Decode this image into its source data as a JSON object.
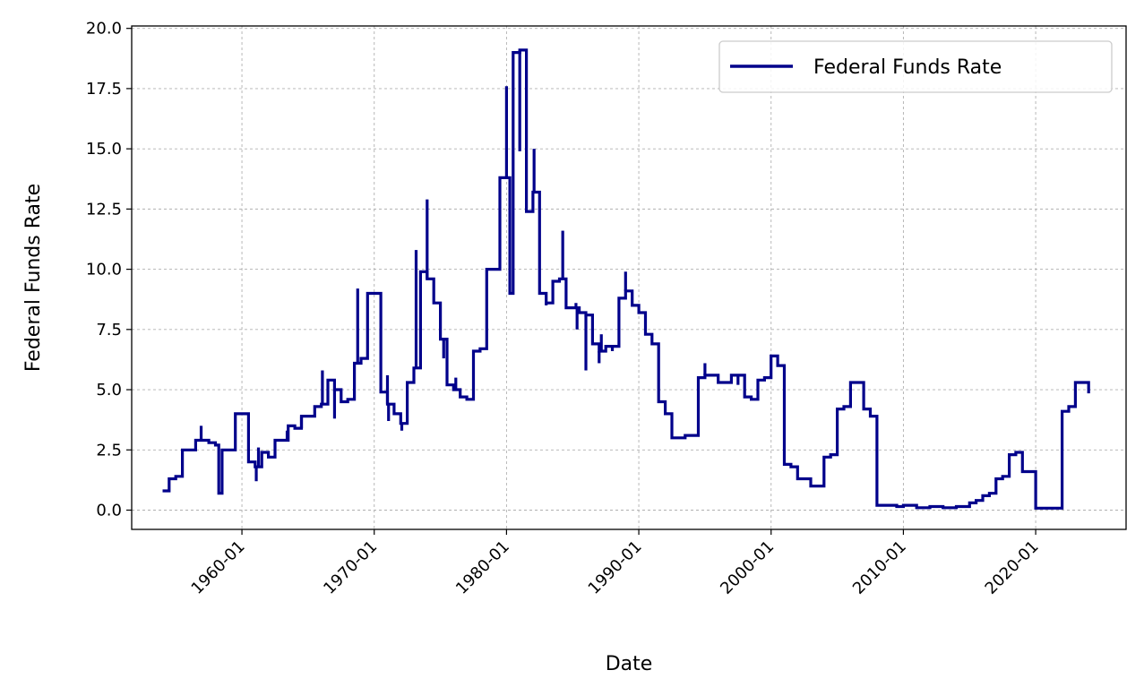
{
  "chart_data": {
    "type": "line",
    "title": "",
    "xlabel": "Date",
    "ylabel": "Federal Funds Rate",
    "xlim": [
      "1951-09",
      "2026-11"
    ],
    "ylim": [
      -0.8,
      20.1
    ],
    "grid": true,
    "legend": {
      "placement": "top-right",
      "entries": [
        "Federal Funds Rate"
      ]
    },
    "x_ticks": [
      "1960-01",
      "1970-01",
      "1980-01",
      "1990-01",
      "2000-01",
      "2010-01",
      "2020-01"
    ],
    "y_ticks": [
      "0.0",
      "2.5",
      "5.0",
      "7.5",
      "10.0",
      "12.5",
      "15.0",
      "17.5",
      "20.0"
    ],
    "colors": {
      "line": "#00008b",
      "grid": "#b0b0b0",
      "legend_border": "#cccccc"
    },
    "series": [
      {
        "name": "Federal Funds Rate",
        "line_style": "steps-post",
        "x": [
          "1954-01",
          "1954-07",
          "1955-01",
          "1955-07",
          "1956-01",
          "1956-07",
          "1957-01",
          "1957-07",
          "1958-01",
          "1958-04",
          "1958-07",
          "1959-01",
          "1959-07",
          "1960-01",
          "1960-07",
          "1961-01",
          "1961-07",
          "1962-01",
          "1962-07",
          "1963-01",
          "1963-07",
          "1964-01",
          "1964-07",
          "1965-01",
          "1965-07",
          "1966-01",
          "1966-07",
          "1967-01",
          "1967-07",
          "1968-01",
          "1968-07",
          "1969-01",
          "1969-07",
          "1970-01",
          "1970-07",
          "1971-01",
          "1971-07",
          "1972-01",
          "1972-07",
          "1973-01",
          "1973-07",
          "1974-01",
          "1974-07",
          "1975-01",
          "1975-07",
          "1976-01",
          "1976-07",
          "1977-01",
          "1977-07",
          "1978-01",
          "1978-07",
          "1979-01",
          "1979-07",
          "1980-01",
          "1980-04",
          "1980-07",
          "1981-01",
          "1981-07",
          "1982-01",
          "1982-07",
          "1983-01",
          "1983-07",
          "1984-01",
          "1984-07",
          "1985-01",
          "1985-07",
          "1986-01",
          "1986-07",
          "1987-01",
          "1987-07",
          "1988-01",
          "1988-07",
          "1989-01",
          "1989-07",
          "1990-01",
          "1990-07",
          "1991-01",
          "1991-07",
          "1992-01",
          "1992-07",
          "1993-01",
          "1993-07",
          "1994-01",
          "1994-07",
          "1995-01",
          "1995-07",
          "1996-01",
          "1996-07",
          "1997-01",
          "1997-07",
          "1998-01",
          "1998-07",
          "1999-01",
          "1999-07",
          "2000-01",
          "2000-07",
          "2001-01",
          "2001-07",
          "2002-01",
          "2002-07",
          "2003-01",
          "2003-07",
          "2004-01",
          "2004-07",
          "2005-01",
          "2005-07",
          "2006-01",
          "2006-07",
          "2007-01",
          "2007-07",
          "2008-01",
          "2008-07",
          "2009-01",
          "2009-07",
          "2010-01",
          "2011-01",
          "2012-01",
          "2013-01",
          "2014-01",
          "2015-01",
          "2015-07",
          "2016-01",
          "2016-07",
          "2017-01",
          "2017-07",
          "2018-01",
          "2018-07",
          "2019-01",
          "2019-07",
          "2020-01",
          "2020-07",
          "2021-01",
          "2022-01",
          "2022-07",
          "2023-01",
          "2023-07",
          "2024-01"
        ],
        "y": [
          0.8,
          1.3,
          1.4,
          2.5,
          2.5,
          2.9,
          2.9,
          2.8,
          2.7,
          0.7,
          2.5,
          2.5,
          4.0,
          4.0,
          2.0,
          1.8,
          2.4,
          2.2,
          2.9,
          2.9,
          3.5,
          3.4,
          3.9,
          3.9,
          4.3,
          4.4,
          5.4,
          5.0,
          4.5,
          4.6,
          6.1,
          6.3,
          9.0,
          9.0,
          4.9,
          4.4,
          4.0,
          3.6,
          5.3,
          5.9,
          9.9,
          9.6,
          8.6,
          7.1,
          5.2,
          5.0,
          4.7,
          4.6,
          6.6,
          6.7,
          10.0,
          10.0,
          13.8,
          13.8,
          9.0,
          19.0,
          19.1,
          12.4,
          13.2,
          9.0,
          8.6,
          9.5,
          9.6,
          8.4,
          8.4,
          8.2,
          8.1,
          6.9,
          6.6,
          6.8,
          6.8,
          8.8,
          9.1,
          8.5,
          8.2,
          7.3,
          6.9,
          4.5,
          4.0,
          3.0,
          3.0,
          3.1,
          3.1,
          5.5,
          5.6,
          5.6,
          5.3,
          5.3,
          5.6,
          5.6,
          4.7,
          4.6,
          5.4,
          5.5,
          6.4,
          6.0,
          1.9,
          1.8,
          1.3,
          1.3,
          1.0,
          1.0,
          2.2,
          2.3,
          4.2,
          4.3,
          5.3,
          5.3,
          4.2,
          3.9,
          0.2,
          0.2,
          0.2,
          0.15,
          0.2,
          0.1,
          0.15,
          0.1,
          0.15,
          0.3,
          0.4,
          0.6,
          0.7,
          1.3,
          1.4,
          2.3,
          2.4,
          1.6,
          1.6,
          0.08,
          0.08,
          0.08,
          4.1,
          4.3,
          5.3,
          5.3,
          4.85
        ],
        "spikes": [
          {
            "x": "1956-12",
            "y": 3.5
          },
          {
            "x": "1961-02",
            "y": 1.2
          },
          {
            "x": "1961-04",
            "y": 2.6
          },
          {
            "x": "1963-06",
            "y": 3.3
          },
          {
            "x": "1964-07",
            "y": 3.4
          },
          {
            "x": "1966-02",
            "y": 5.8
          },
          {
            "x": "1967-01",
            "y": 3.8
          },
          {
            "x": "1968-10",
            "y": 9.2
          },
          {
            "x": "1971-01",
            "y": 5.6
          },
          {
            "x": "1971-02",
            "y": 3.7
          },
          {
            "x": "1972-02",
            "y": 3.3
          },
          {
            "x": "1973-03",
            "y": 10.8
          },
          {
            "x": "1974-01",
            "y": 12.9
          },
          {
            "x": "1975-04",
            "y": 6.3
          },
          {
            "x": "1976-03",
            "y": 5.5
          },
          {
            "x": "1980-01",
            "y": 17.6
          },
          {
            "x": "1981-01",
            "y": 14.9
          },
          {
            "x": "1981-02",
            "y": 19.1
          },
          {
            "x": "1982-02",
            "y": 15.0
          },
          {
            "x": "1983-01",
            "y": 8.5
          },
          {
            "x": "1984-04",
            "y": 11.6
          },
          {
            "x": "1985-04",
            "y": 8.6
          },
          {
            "x": "1985-05",
            "y": 7.5
          },
          {
            "x": "1986-01",
            "y": 5.8
          },
          {
            "x": "1987-01",
            "y": 6.1
          },
          {
            "x": "1987-03",
            "y": 7.3
          },
          {
            "x": "1988-01",
            "y": 6.6
          },
          {
            "x": "1989-01",
            "y": 9.9
          },
          {
            "x": "1995-01",
            "y": 6.1
          },
          {
            "x": "1997-07",
            "y": 5.2
          }
        ]
      }
    ]
  }
}
